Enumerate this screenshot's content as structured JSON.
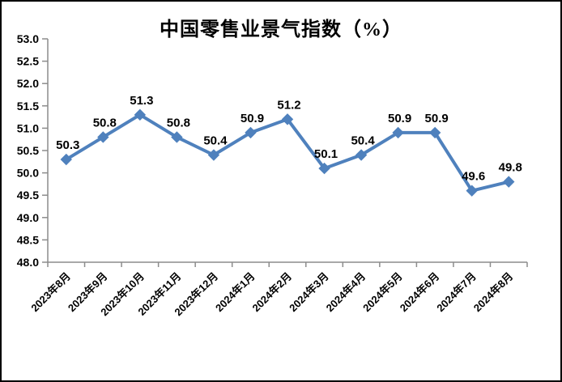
{
  "chart_data": {
    "type": "line",
    "title": "中国零售业景气指数（%）",
    "categories": [
      "2023年8月",
      "2023年9月",
      "2023年10月",
      "2023年11月",
      "2023年12月",
      "2024年1月",
      "2024年2月",
      "2024年3月",
      "2024年4月",
      "2024年5月",
      "2024年6月",
      "2024年7月",
      "2024年8月"
    ],
    "values": [
      50.3,
      50.8,
      51.3,
      50.8,
      50.4,
      50.9,
      51.2,
      50.1,
      50.4,
      50.9,
      50.9,
      49.6,
      49.8
    ],
    "xlabel": "",
    "ylabel": "",
    "ylim": [
      48.0,
      53.0
    ],
    "ytick_step": 0.5,
    "ytick_labels": [
      "48.0",
      "48.5",
      "49.0",
      "49.5",
      "50.0",
      "50.5",
      "51.0",
      "51.5",
      "52.0",
      "52.5",
      "53.0"
    ],
    "data_labels": [
      "50.3",
      "50.8",
      "51.3",
      "50.8",
      "50.4",
      "50.9",
      "51.2",
      "50.1",
      "50.4",
      "50.9",
      "50.9",
      "49.6",
      "49.8"
    ],
    "grid": false,
    "legend_position": "none",
    "line_color": "#4F81BD",
    "marker_shape": "diamond",
    "marker_color": "#4F81BD",
    "axis_color": "#8C8C8C",
    "label_color": "#000000",
    "background_color": "#FFFFFF",
    "border_color": "#000000"
  }
}
